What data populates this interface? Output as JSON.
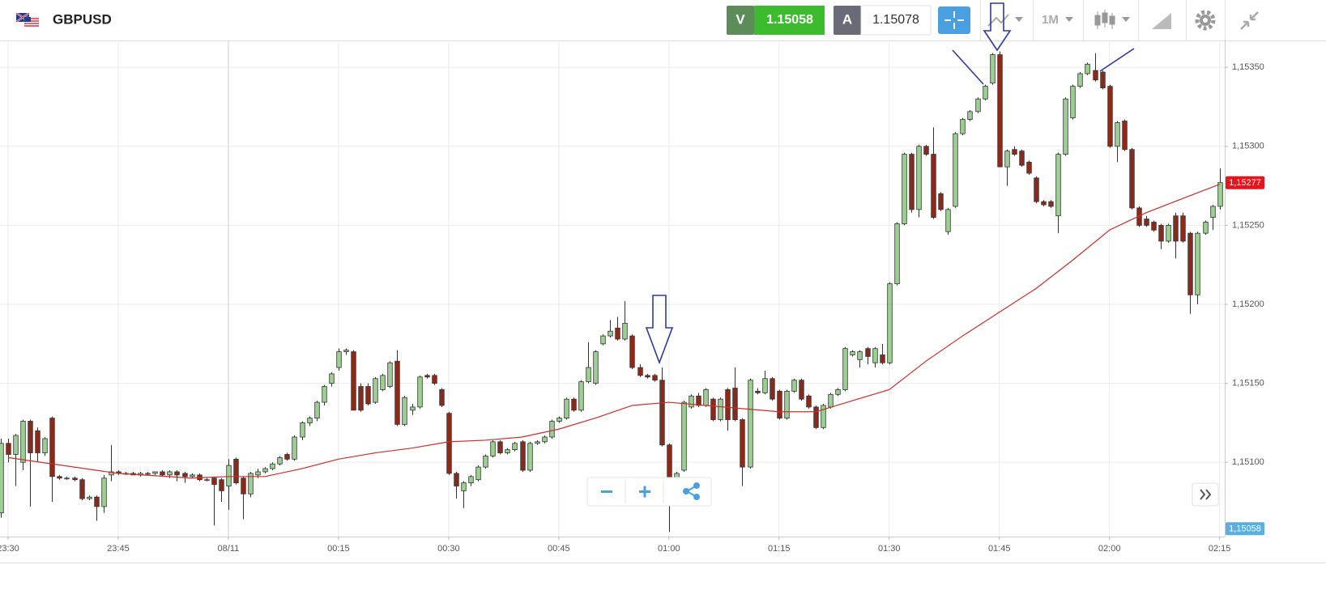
{
  "header": {
    "symbol": "GBPUSD",
    "bid_label": "V",
    "bid": "1.15058",
    "ask_label": "A",
    "ask": "1.15078",
    "timeframe": "1M"
  },
  "chart_data": {
    "type": "candlestick",
    "up_color": "#9ccf92",
    "down_color": "#8b2a1a",
    "x": [
      -1,
      0,
      1,
      2,
      3,
      4,
      5,
      6,
      7,
      8,
      9,
      10,
      11,
      12,
      13,
      14,
      15,
      16,
      17,
      18,
      19,
      20,
      21,
      22,
      23,
      24,
      25,
      26,
      27,
      28,
      29,
      30,
      31,
      32,
      33,
      34,
      35,
      36,
      37,
      38,
      39,
      40,
      41,
      42,
      43,
      44,
      45,
      46,
      47,
      48,
      49,
      50,
      51,
      52,
      53,
      54,
      55,
      56,
      57,
      58,
      59,
      60,
      61,
      62,
      63,
      64,
      65,
      66,
      67,
      68,
      69,
      70,
      71,
      72,
      73,
      74,
      75,
      76,
      77,
      78,
      79,
      80,
      81,
      82,
      83,
      84,
      85,
      86,
      87,
      88,
      89,
      90,
      91,
      92,
      93,
      94,
      95,
      96,
      97,
      98,
      99,
      100,
      101,
      102,
      103,
      104,
      105,
      106,
      107,
      108,
      109,
      110,
      111,
      112,
      113,
      114,
      115,
      116,
      117,
      118,
      119,
      120,
      121,
      122,
      123,
      124,
      125,
      126,
      127,
      128,
      129,
      130,
      131,
      132,
      133,
      134,
      135,
      136,
      137,
      138,
      139,
      140,
      141,
      142,
      143,
      144,
      145,
      146,
      147,
      148,
      149,
      150,
      151,
      152,
      153,
      154,
      155,
      156,
      157,
      158,
      159,
      160,
      161,
      162,
      163,
      164,
      165
    ],
    "open": [
      1.15068,
      1.15112,
      1.15105,
      1.151,
      1.15126,
      1.1512,
      1.15106,
      1.15128,
      1.15091,
      1.1509,
      1.1509,
      1.15089,
      1.15077,
      1.15078,
      1.15072,
      1.15092,
      1.15094,
      1.15093,
      1.15093,
      1.15092,
      1.15093,
      1.15093,
      1.15094,
      1.15092,
      1.15094,
      1.15093,
      1.15091,
      1.15092,
      1.15089,
      1.1509,
      1.15089,
      1.15085,
      1.15102,
      1.1509,
      1.1508,
      1.15092,
      1.15094,
      1.15096,
      1.15099,
      1.15105,
      1.15102,
      1.15116,
      1.15125,
      1.15128,
      1.15138,
      1.1515,
      1.1516,
      1.1517,
      1.1517,
      1.15148,
      1.15148,
      1.15138,
      1.15146,
      1.15148,
      1.15164,
      1.15124,
      1.15133,
      1.15135,
      1.15155,
      1.15155,
      1.15146,
      1.15131,
      1.15093,
      1.15082,
      1.15087,
      1.15089,
      1.15097,
      1.15104,
      1.15113,
      1.15106,
      1.15108,
      1.15113,
      1.15095,
      1.15112,
      1.15113,
      1.15116,
      1.15126,
      1.15128,
      1.1514,
      1.15133,
      1.15151,
      1.1515,
      1.15175,
      1.1518,
      1.15185,
      1.15178,
      1.1518,
      1.1516,
      1.15155,
      1.15155,
      1.15152,
      1.15111,
      1.1508,
      1.15095,
      1.15135,
      1.15142,
      1.15136,
      1.1514,
      1.15127,
      1.15146,
      1.15147,
      1.15127,
      1.15097,
      1.15145,
      1.15144,
      1.15153,
      1.15145,
      1.15128,
      1.15145,
      1.15152,
      1.15142,
      1.15135,
      1.15122,
      1.15135,
      1.15143,
      1.15146,
      1.15168,
      1.15165,
      1.15172,
      1.15163,
      1.15168,
      1.15163,
      1.15213,
      1.15251,
      1.15295,
      1.1526,
      1.153,
      1.15295,
      1.1527,
      1.15246,
      1.15262,
      1.15308,
      1.15317,
      1.15322,
      1.1533,
      1.1534,
      1.15358,
      1.15287,
      1.15298,
      1.15297,
      1.1529,
      1.1528,
      1.15265,
      1.15265,
      1.15256,
      1.15295,
      1.15318,
      1.15338,
      1.15346,
      1.15348,
      1.15347,
      1.15338,
      1.153,
      1.15316,
      1.15298,
      1.15261,
      1.15254,
      1.15252,
      1.1525,
      1.1524,
      1.15256,
      1.15256,
      1.15245,
      1.15206,
      1.15245,
      1.15255,
      1.15262
    ],
    "high": [
      1.15115,
      1.15115,
      1.15118,
      1.15127,
      1.15127,
      1.15122,
      1.15116,
      1.15129,
      1.15092,
      1.15091,
      1.15091,
      1.1509,
      1.15079,
      1.15079,
      1.15092,
      1.15111,
      1.15095,
      1.15094,
      1.15094,
      1.15094,
      1.15094,
      1.15094,
      1.15095,
      1.15095,
      1.15095,
      1.15094,
      1.15093,
      1.15093,
      1.1509,
      1.15091,
      1.1509,
      1.15102,
      1.15103,
      1.15091,
      1.15094,
      1.15096,
      1.15097,
      1.151,
      1.15104,
      1.15106,
      1.15117,
      1.15126,
      1.15129,
      1.15139,
      1.15149,
      1.15157,
      1.15172,
      1.15172,
      1.15171,
      1.1515,
      1.1515,
      1.15154,
      1.15156,
      1.15164,
      1.15171,
      1.15142,
      1.15137,
      1.15155,
      1.15156,
      1.15156,
      1.15147,
      1.15132,
      1.15094,
      1.15088,
      1.15092,
      1.15098,
      1.15105,
      1.15114,
      1.15114,
      1.15109,
      1.15113,
      1.15114,
      1.15113,
      1.15114,
      1.15117,
      1.15127,
      1.15129,
      1.15141,
      1.15141,
      1.15152,
      1.15176,
      1.15171,
      1.15181,
      1.1519,
      1.15192,
      1.15202,
      1.15181,
      1.15162,
      1.15156,
      1.15156,
      1.1516,
      1.15112,
      1.15094,
      1.15139,
      1.15143,
      1.15144,
      1.15147,
      1.15141,
      1.15141,
      1.15147,
      1.1516,
      1.15128,
      1.15153,
      1.15147,
      1.15158,
      1.15154,
      1.15146,
      1.15146,
      1.15153,
      1.15153,
      1.15143,
      1.15136,
      1.15137,
      1.15144,
      1.15147,
      1.15173,
      1.15171,
      1.15171,
      1.15173,
      1.15173,
      1.15175,
      1.15214,
      1.15252,
      1.15296,
      1.15296,
      1.15301,
      1.15301,
      1.15312,
      1.15271,
      1.15261,
      1.15309,
      1.15318,
      1.15323,
      1.15331,
      1.15339,
      1.15359,
      1.1536,
      1.15298,
      1.153,
      1.15298,
      1.15291,
      1.15281,
      1.15266,
      1.15266,
      1.15296,
      1.15331,
      1.15339,
      1.15347,
      1.15353,
      1.15359,
      1.15348,
      1.15339,
      1.15316,
      1.15317,
      1.15299,
      1.15262,
      1.15256,
      1.15253,
      1.15251,
      1.15251,
      1.15258,
      1.15258,
      1.15246,
      1.15246,
      1.15253,
      1.15263,
      1.15286
    ],
    "low": [
      1.15065,
      1.151,
      1.15085,
      1.15095,
      1.15072,
      1.151,
      1.15104,
      1.15075,
      1.15089,
      1.15089,
      1.15088,
      1.15076,
      1.15076,
      1.15063,
      1.15068,
      1.15088,
      1.15092,
      1.15092,
      1.15092,
      1.15091,
      1.15092,
      1.15092,
      1.15091,
      1.1509,
      1.15088,
      1.15087,
      1.1509,
      1.15088,
      1.15088,
      1.1506,
      1.15075,
      1.1507,
      1.15086,
      1.15064,
      1.15078,
      1.1509,
      1.15093,
      1.15095,
      1.15098,
      1.15101,
      1.15101,
      1.15114,
      1.15123,
      1.15126,
      1.15136,
      1.15148,
      1.15158,
      1.15168,
      1.15133,
      1.15132,
      1.15136,
      1.15137,
      1.15145,
      1.15147,
      1.15123,
      1.15123,
      1.1513,
      1.15134,
      1.15153,
      1.15149,
      1.15135,
      1.15092,
      1.15077,
      1.15071,
      1.15085,
      1.15088,
      1.15096,
      1.15103,
      1.15105,
      1.15105,
      1.15107,
      1.15094,
      1.15094,
      1.15111,
      1.15112,
      1.15115,
      1.15125,
      1.15127,
      1.15132,
      1.15132,
      1.1515,
      1.15149,
      1.15174,
      1.15179,
      1.15177,
      1.15177,
      1.15159,
      1.15154,
      1.15153,
      1.15151,
      1.1511,
      1.15056,
      1.15079,
      1.15094,
      1.15134,
      1.15135,
      1.15135,
      1.15126,
      1.15126,
      1.1512,
      1.15126,
      1.15085,
      1.15096,
      1.15143,
      1.15143,
      1.15139,
      1.15127,
      1.15127,
      1.15144,
      1.15139,
      1.15134,
      1.15121,
      1.15121,
      1.15134,
      1.15142,
      1.15145,
      1.15167,
      1.1516,
      1.15162,
      1.1516,
      1.15162,
      1.15162,
      1.15212,
      1.1525,
      1.15258,
      1.15255,
      1.15294,
      1.15254,
      1.15259,
      1.15244,
      1.15261,
      1.15307,
      1.15316,
      1.15321,
      1.15329,
      1.15339,
      1.15287,
      1.15275,
      1.15294,
      1.15287,
      1.15282,
      1.15264,
      1.15262,
      1.15261,
      1.15245,
      1.15294,
      1.15317,
      1.15337,
      1.15345,
      1.15341,
      1.15336,
      1.15299,
      1.1529,
      1.15297,
      1.1526,
      1.15249,
      1.15249,
      1.15246,
      1.15235,
      1.15239,
      1.15229,
      1.15239,
      1.15194,
      1.152,
      1.15244,
      1.15247,
      1.1526
    ],
    "close": [
      1.15112,
      1.15105,
      1.15117,
      1.15126,
      1.15106,
      1.15106,
      1.15115,
      1.15091,
      1.1509,
      1.1509,
      1.15089,
      1.15077,
      1.15078,
      1.15072,
      1.1509,
      1.15094,
      1.15093,
      1.15093,
      1.15092,
      1.15093,
      1.15093,
      1.15094,
      1.15092,
      1.15094,
      1.15092,
      1.15091,
      1.15092,
      1.15089,
      1.15089,
      1.15086,
      1.15082,
      1.15098,
      1.15087,
      1.1508,
      1.15093,
      1.15094,
      1.15096,
      1.15099,
      1.15103,
      1.15102,
      1.15116,
      1.15125,
      1.15128,
      1.15138,
      1.15148,
      1.15156,
      1.1517,
      1.15171,
      1.15133,
      1.15133,
      1.15137,
      1.15153,
      1.15155,
      1.15163,
      1.15124,
      1.15141,
      1.15135,
      1.15154,
      1.15154,
      1.1515,
      1.15136,
      1.15093,
      1.15085,
      1.15087,
      1.15091,
      1.15097,
      1.15104,
      1.15113,
      1.15106,
      1.15108,
      1.15112,
      1.15095,
      1.15112,
      1.15113,
      1.15116,
      1.15126,
      1.15128,
      1.1514,
      1.15133,
      1.15151,
      1.1516,
      1.1517,
      1.1518,
      1.15183,
      1.15178,
      1.15188,
      1.1516,
      1.15155,
      1.15154,
      1.15152,
      1.15111,
      1.1508,
      1.15093,
      1.15138,
      1.15142,
      1.15136,
      1.15146,
      1.15127,
      1.1514,
      1.15127,
      1.15127,
      1.15097,
      1.15152,
      1.15144,
      1.15153,
      1.1514,
      1.15128,
      1.15145,
      1.15152,
      1.1514,
      1.15135,
      1.15122,
      1.15136,
      1.15143,
      1.15146,
      1.15172,
      1.1517,
      1.1517,
      1.15167,
      1.15172,
      1.15163,
      1.15213,
      1.15251,
      1.15295,
      1.1526,
      1.153,
      1.15295,
      1.15255,
      1.1526,
      1.1526,
      1.15308,
      1.15317,
      1.15322,
      1.1533,
      1.15338,
      1.15358,
      1.15287,
      1.15297,
      1.15295,
      1.15288,
      1.15283,
      1.15265,
      1.15263,
      1.15262,
      1.15295,
      1.1533,
      1.15338,
      1.15346,
      1.15352,
      1.15342,
      1.15337,
      1.153,
      1.15315,
      1.15298,
      1.15261,
      1.1525,
      1.1525,
      1.15247,
      1.1524,
      1.1525,
      1.1524,
      1.1524,
      1.15206,
      1.15245,
      1.15252,
      1.15262,
      1.15277
    ],
    "series": [
      {
        "type": "line",
        "color": "#c8302a",
        "x": [
          0,
          15,
          25,
          30,
          35,
          40,
          45,
          50,
          55,
          60,
          65,
          70,
          75,
          80,
          85,
          90,
          95,
          100,
          105,
          110,
          115,
          120,
          125,
          130,
          135,
          140,
          145,
          150,
          155,
          160,
          165
        ],
        "values": [
          1.15103,
          1.15093,
          1.1509,
          1.15091,
          1.15091,
          1.15096,
          1.15102,
          1.15106,
          1.15109,
          1.15113,
          1.15114,
          1.15116,
          1.15121,
          1.15128,
          1.15136,
          1.15138,
          1.15136,
          1.15134,
          1.15132,
          1.15132,
          1.15139,
          1.15146,
          1.15164,
          1.1518,
          1.15195,
          1.1521,
          1.15228,
          1.15247,
          1.15258,
          1.15267,
          1.15276
        ]
      }
    ],
    "xlim": [
      -1.1,
      165.7
    ],
    "xticks": [
      {
        "value": 0,
        "label": "23:30"
      },
      {
        "value": 15,
        "label": "23:45"
      },
      {
        "value": 30,
        "label": "08/11"
      },
      {
        "value": 45,
        "label": "00:15"
      },
      {
        "value": 60,
        "label": "00:30"
      },
      {
        "value": 75,
        "label": "00:45"
      },
      {
        "value": 90,
        "label": "01:00"
      },
      {
        "value": 105,
        "label": "01:15"
      },
      {
        "value": 120,
        "label": "01:30"
      },
      {
        "value": 135,
        "label": "01:45"
      },
      {
        "value": 150,
        "label": "02:00"
      },
      {
        "value": 165,
        "label": "02:15"
      }
    ],
    "ylim": [
      1.15053,
      1.15367
    ],
    "yticks": [
      {
        "value": 1.151,
        "label": "1,15100"
      },
      {
        "value": 1.1515,
        "label": "1,15150"
      },
      {
        "value": 1.152,
        "label": "1,15200"
      },
      {
        "value": 1.1525,
        "label": "1,15250"
      },
      {
        "value": 1.153,
        "label": "1,15300"
      },
      {
        "value": 1.1535,
        "label": "1,15350"
      }
    ],
    "grid": true,
    "price_tags": [
      {
        "value": 1.15277,
        "label": "1,15277",
        "color": "#e8141c"
      },
      {
        "value": 1.15058,
        "label": "1,15058",
        "color": "#5aafe0"
      }
    ]
  }
}
